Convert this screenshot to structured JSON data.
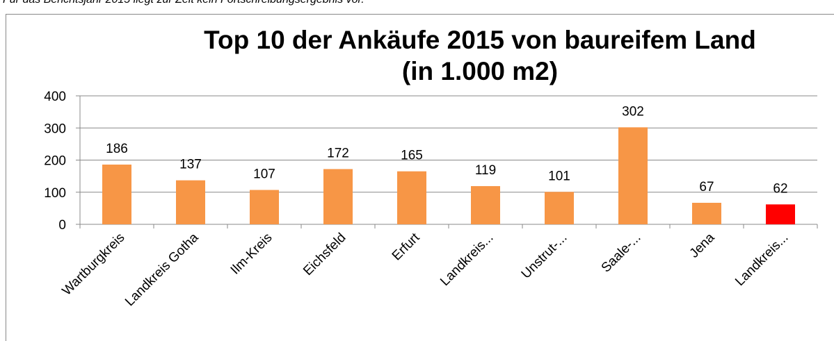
{
  "note": "Für das Berichtsjahr 2015 liegt zur Zeit kein Fortschreibungsergebnis vor.",
  "chart_data": {
    "type": "bar",
    "title": [
      "Top 10 der Ankäufe 2015 von baureifem Land",
      "(in 1.000 m2)"
    ],
    "categories": [
      "Wartburgkreis",
      "Landkreis Gotha",
      "Ilm-Kreis",
      "Eichsfeld",
      "Erfurt",
      "Landkreis...",
      "Unstrut-...",
      "Saale-...",
      "Jena",
      "Landkreis..."
    ],
    "values": [
      186,
      137,
      107,
      172,
      165,
      119,
      101,
      302,
      67,
      62
    ],
    "colors": [
      "#f79646",
      "#f79646",
      "#f79646",
      "#f79646",
      "#f79646",
      "#f79646",
      "#f79646",
      "#f79646",
      "#f79646",
      "#ff0000"
    ],
    "ylim": [
      0,
      400
    ],
    "yticks": [
      0,
      100,
      200,
      300,
      400
    ],
    "grid": true
  }
}
